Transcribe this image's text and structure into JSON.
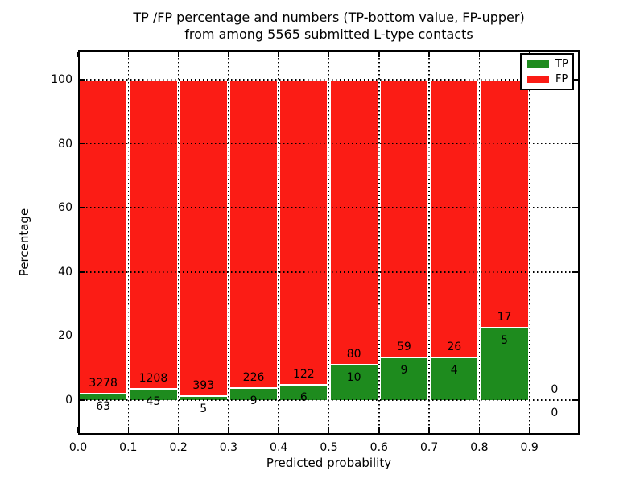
{
  "title": {
    "line1": "TP /FP percentage and numbers (TP-bottom value, FP-upper)",
    "line2": "from among 5565 submitted L-type contacts"
  },
  "x_axis": {
    "label": "Predicted probability",
    "ticks": [
      "0.0",
      "0.1",
      "0.2",
      "0.3",
      "0.4",
      "0.5",
      "0.6",
      "0.7",
      "0.8",
      "0.9"
    ]
  },
  "y_axis": {
    "label": "Percentage",
    "ticks": [
      "0",
      "20",
      "40",
      "60",
      "80",
      "100"
    ]
  },
  "legend": {
    "items": [
      {
        "label": "TP",
        "color": "#1e8b1e"
      },
      {
        "label": "FP",
        "color": "#fb1c15"
      }
    ]
  },
  "colors": {
    "tp_green": "#1e8b1e",
    "fp_red": "#fb1c15",
    "bar_edge": "#ffffff",
    "grid": "#000000"
  },
  "chart_data": {
    "type": "bar",
    "stacked": true,
    "title": "TP /FP percentage and numbers (TP-bottom value, FP-upper) from among 5565 submitted L-type contacts",
    "xlabel": "Predicted probability",
    "ylabel": "Percentage",
    "total_contacts": 5565,
    "bin_width": 0.1,
    "bin_starts": [
      0.0,
      0.1,
      0.2,
      0.3,
      0.4,
      0.5,
      0.6,
      0.7,
      0.8,
      0.9
    ],
    "categories": [
      "0.0-0.1",
      "0.1-0.2",
      "0.2-0.3",
      "0.3-0.4",
      "0.4-0.5",
      "0.5-0.6",
      "0.6-0.7",
      "0.7-0.8",
      "0.8-0.9",
      "0.9-1.0"
    ],
    "series": [
      {
        "name": "TP",
        "color": "#1e8b1e",
        "counts": [
          63,
          45,
          5,
          9,
          6,
          10,
          9,
          4,
          5,
          0
        ],
        "percent": [
          1.89,
          3.59,
          1.26,
          3.83,
          4.69,
          11.11,
          13.24,
          13.33,
          22.73,
          0.0
        ]
      },
      {
        "name": "FP",
        "color": "#fb1c15",
        "counts": [
          3278,
          1208,
          393,
          226,
          122,
          80,
          59,
          26,
          17,
          0
        ],
        "percent": [
          98.11,
          96.41,
          98.74,
          96.17,
          95.31,
          88.89,
          86.76,
          86.67,
          77.27,
          0.0
        ]
      }
    ],
    "annotation_rule": "FP count printed above the TP/FP boundary, TP count printed below it",
    "xlim": [
      0.0,
      1.0
    ],
    "ylim": [
      -11,
      110
    ],
    "y_ticks": [
      0,
      20,
      40,
      60,
      80,
      100
    ],
    "grid": "dotted, drawn above bars",
    "legend_position": "upper right"
  }
}
